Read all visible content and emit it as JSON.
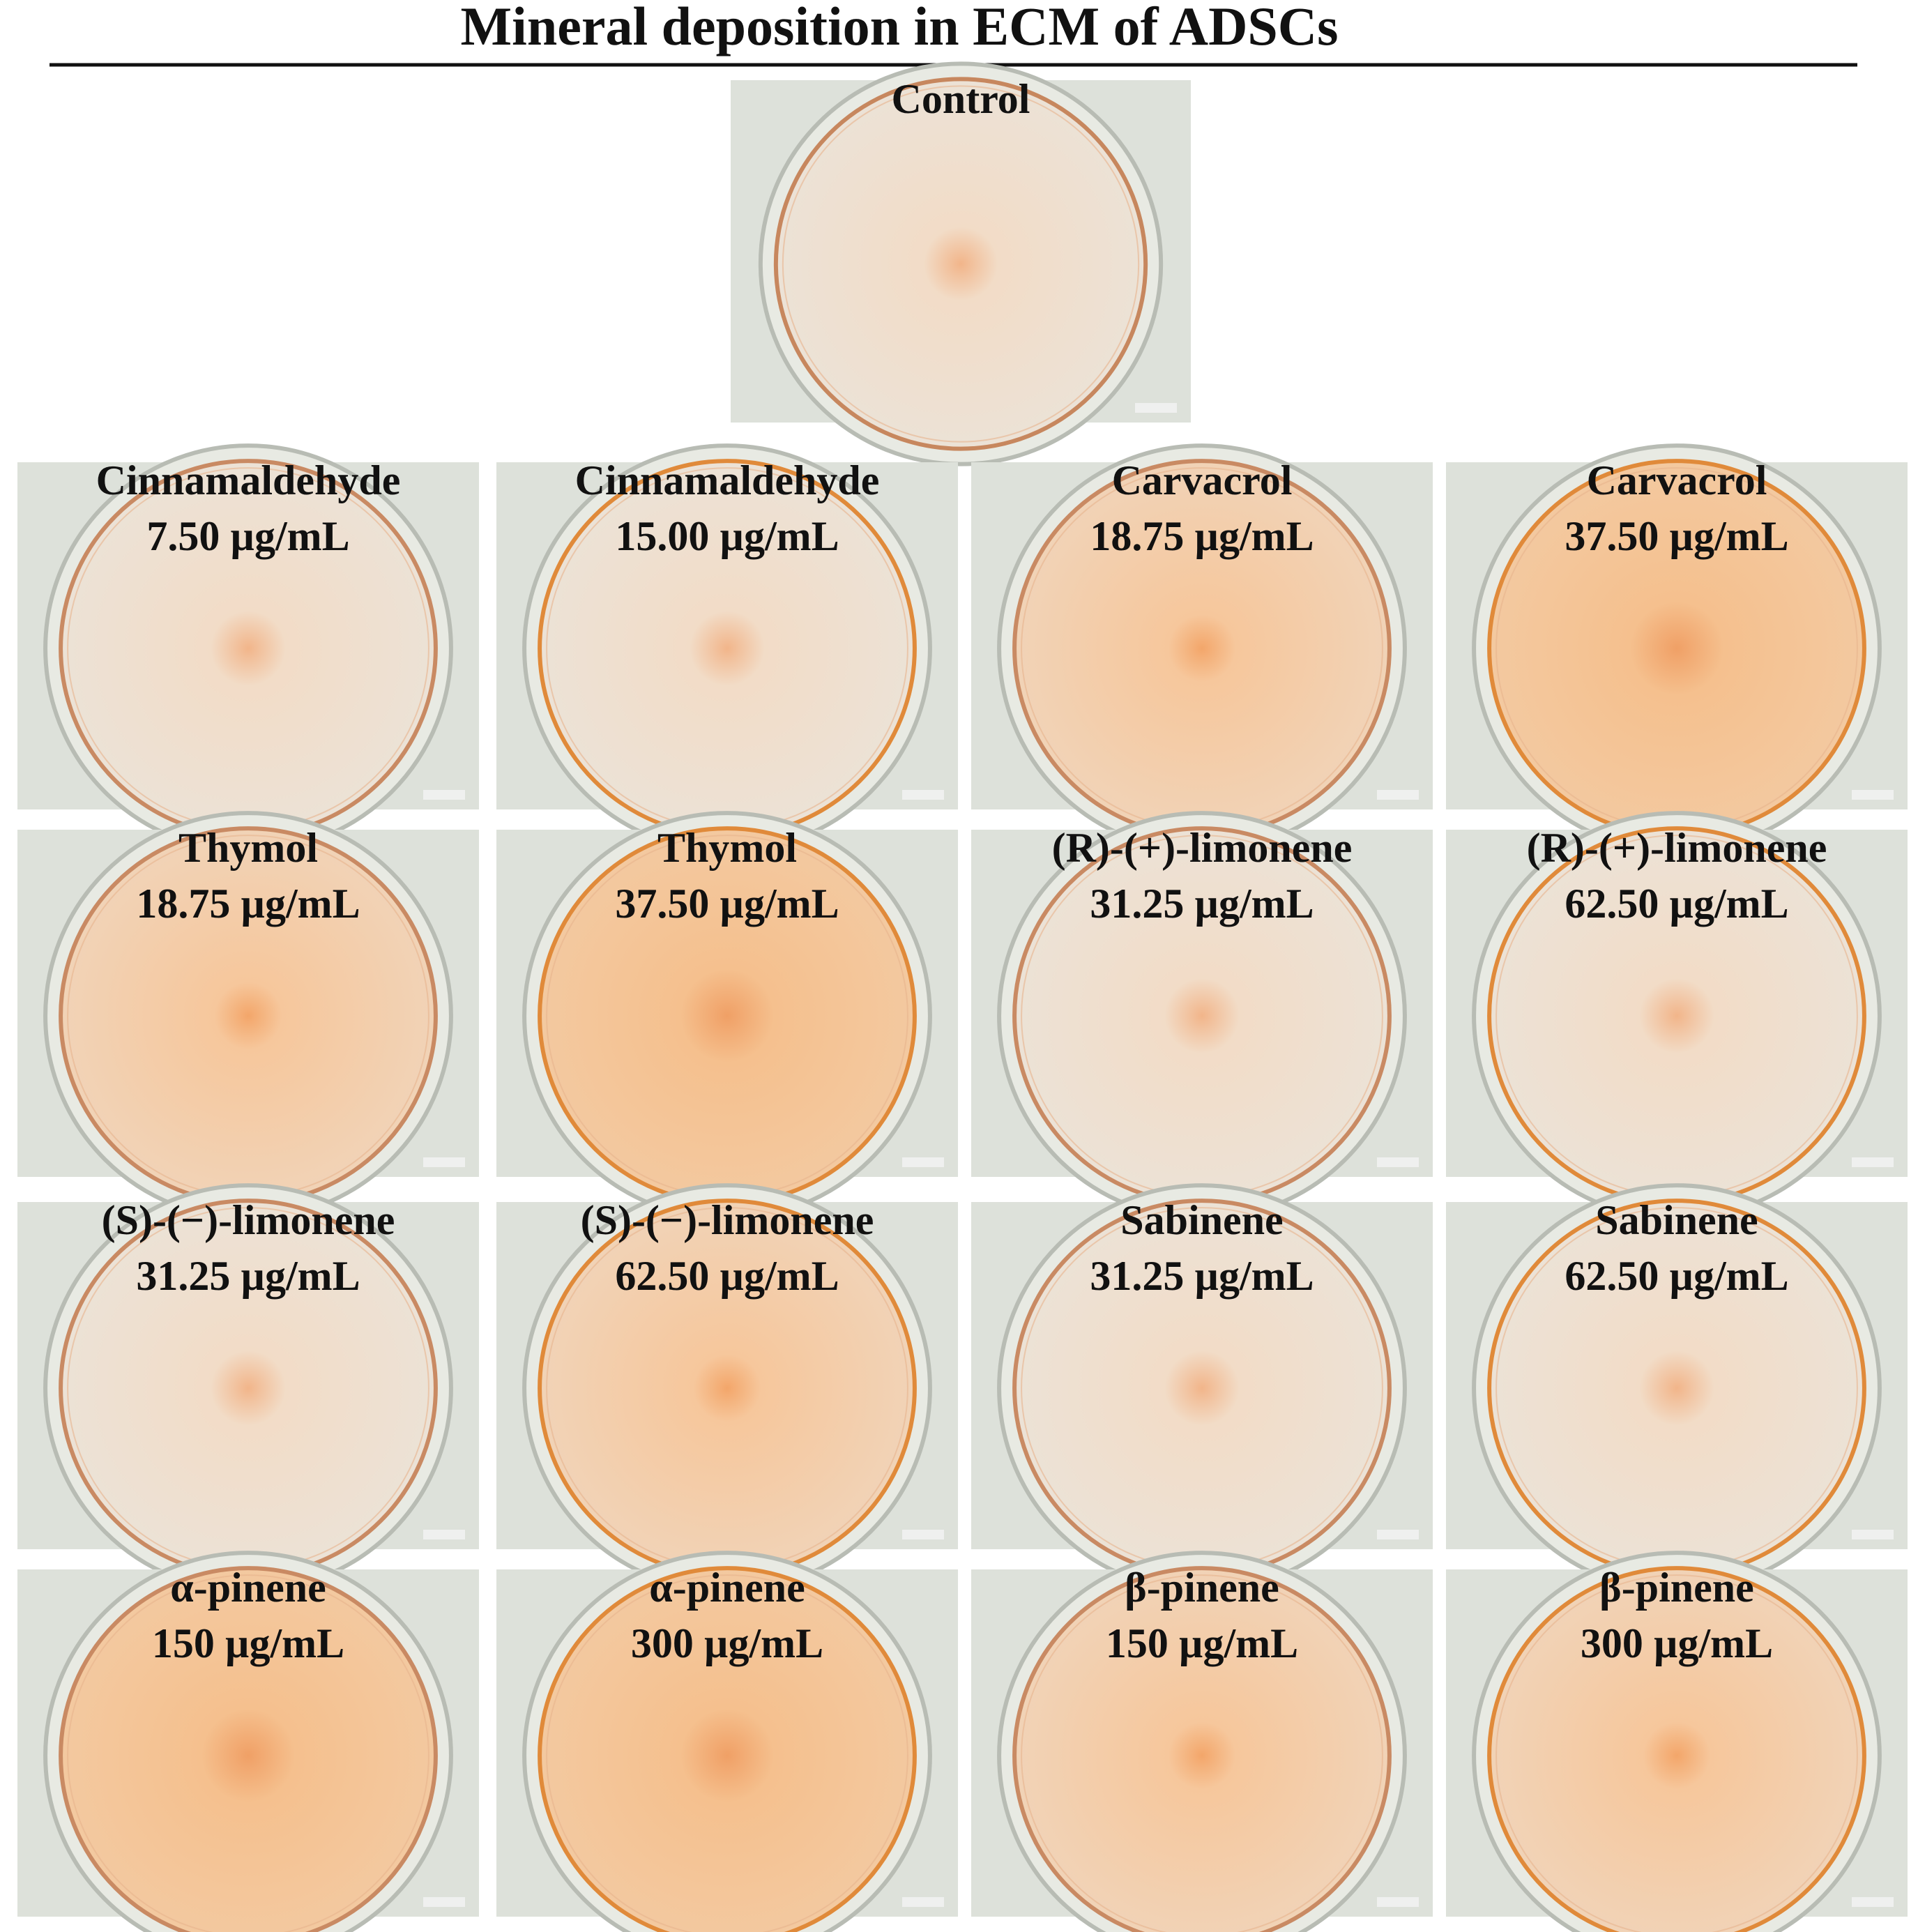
{
  "title": "Mineral deposition in ECM of ADSCs",
  "control": {
    "label": "Control"
  },
  "panels": [
    {
      "label": "Cinnamaldehyde",
      "concentration": "7.50 µg/mL"
    },
    {
      "label": "Cinnamaldehyde",
      "concentration": "15.00 µg/mL"
    },
    {
      "label": "Carvacrol",
      "concentration": "18.75 µg/mL"
    },
    {
      "label": "Carvacrol",
      "concentration": "37.50 µg/mL"
    },
    {
      "label": "Thymol",
      "concentration": "18.75 µg/mL"
    },
    {
      "label": "Thymol",
      "concentration": "37.50 µg/mL"
    },
    {
      "label": "(R)-(+)-limonene",
      "concentration": "31.25 µg/mL"
    },
    {
      "label": "(R)-(+)-limonene",
      "concentration": "62.50 µg/mL"
    },
    {
      "label": "(S)-(−)-limonene",
      "concentration": "31.25 µg/mL"
    },
    {
      "label": "(S)-(−)-limonene",
      "concentration": "62.50 µg/mL"
    },
    {
      "label": "Sabinene",
      "concentration": "31.25 µg/mL"
    },
    {
      "label": "Sabinene",
      "concentration": "62.50 µg/mL"
    },
    {
      "label": "α-pinene",
      "concentration": "150 µg/mL"
    },
    {
      "label": "α-pinene",
      "concentration": "300 µg/mL"
    },
    {
      "label": "β-pinene",
      "concentration": "150 µg/mL"
    },
    {
      "label": "β-pinene",
      "concentration": "300 µg/mL"
    }
  ]
}
